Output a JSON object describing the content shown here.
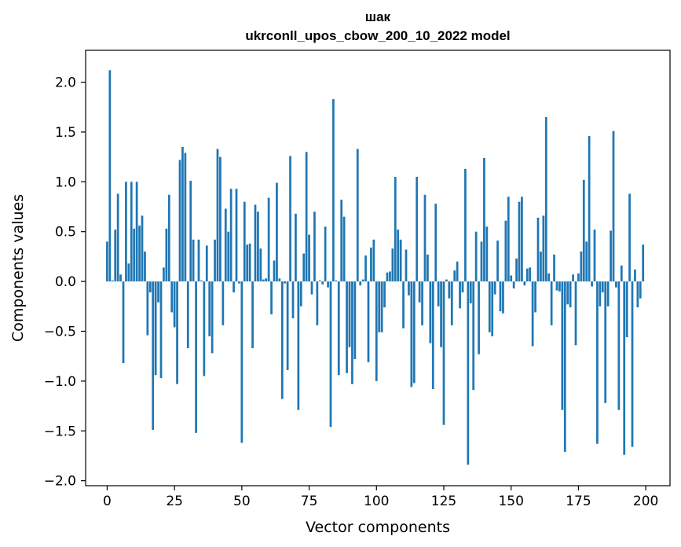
{
  "chart_data": {
    "type": "bar",
    "title": "шак",
    "subtitle": "ukrconll_upos_cbow_200_10_2022 model",
    "xlabel": "Vector components",
    "ylabel": "Components values",
    "xlim": [
      -8,
      209
    ],
    "ylim": [
      -2.05,
      2.32
    ],
    "xticks": [
      0,
      25,
      50,
      75,
      100,
      125,
      150,
      175,
      200
    ],
    "xtick_labels": [
      "0",
      "25",
      "50",
      "75",
      "100",
      "125",
      "150",
      "175",
      "200"
    ],
    "yticks": [
      2.0,
      1.5,
      1.0,
      0.5,
      0.0,
      -0.5,
      -1.0,
      -1.5,
      -2.0
    ],
    "ytick_labels": [
      "2.0",
      "1.5",
      "1.0",
      "0.5",
      "0.0",
      "−0.5",
      "−1.0",
      "−1.5",
      "−2.0"
    ],
    "bar_color": "#1f77b4",
    "grid": false,
    "x": [
      0,
      1,
      2,
      3,
      4,
      5,
      6,
      7,
      8,
      9,
      10,
      11,
      12,
      13,
      14,
      15,
      16,
      17,
      18,
      19,
      20,
      21,
      22,
      23,
      24,
      25,
      26,
      27,
      28,
      29,
      30,
      31,
      32,
      33,
      34,
      35,
      36,
      37,
      38,
      39,
      40,
      41,
      42,
      43,
      44,
      45,
      46,
      47,
      48,
      49,
      50,
      51,
      52,
      53,
      54,
      55,
      56,
      57,
      58,
      59,
      60,
      61,
      62,
      63,
      64,
      65,
      66,
      67,
      68,
      69,
      70,
      71,
      72,
      73,
      74,
      75,
      76,
      77,
      78,
      79,
      80,
      81,
      82,
      83,
      84,
      85,
      86,
      87,
      88,
      89,
      90,
      91,
      92,
      93,
      94,
      95,
      96,
      97,
      98,
      99,
      100,
      101,
      102,
      103,
      104,
      105,
      106,
      107,
      108,
      109,
      110,
      111,
      112,
      113,
      114,
      115,
      116,
      117,
      118,
      119,
      120,
      121,
      122,
      123,
      124,
      125,
      126,
      127,
      128,
      129,
      130,
      131,
      132,
      133,
      134,
      135,
      136,
      137,
      138,
      139,
      140,
      141,
      142,
      143,
      144,
      145,
      146,
      147,
      148,
      149,
      150,
      151,
      152,
      153,
      154,
      155,
      156,
      157,
      158,
      159,
      160,
      161,
      162,
      163,
      164,
      165,
      166,
      167,
      168,
      169,
      170,
      171,
      172,
      173,
      174,
      175,
      176,
      177,
      178,
      179,
      180,
      181,
      182,
      183,
      184,
      185,
      186,
      187,
      188,
      189,
      190,
      191,
      192,
      193,
      194,
      195,
      196,
      197,
      198,
      199
    ],
    "values": [
      0.4,
      2.12,
      0.01,
      0.52,
      0.88,
      0.07,
      -0.82,
      1.0,
      0.18,
      1.0,
      0.53,
      1.0,
      0.56,
      0.66,
      0.3,
      -0.54,
      -0.11,
      -1.49,
      -0.94,
      -0.21,
      -0.97,
      0.14,
      0.53,
      0.87,
      -0.31,
      -0.46,
      -1.03,
      1.22,
      1.35,
      1.29,
      -0.67,
      1.01,
      0.42,
      -1.52,
      0.42,
      0.01,
      -0.95,
      0.36,
      -0.55,
      -0.72,
      0.42,
      1.33,
      1.25,
      -0.44,
      0.73,
      0.5,
      0.93,
      -0.11,
      0.93,
      -0.02,
      -1.62,
      0.8,
      0.37,
      0.38,
      -0.67,
      0.77,
      0.7,
      0.33,
      0.02,
      0.03,
      0.84,
      -0.33,
      0.21,
      0.99,
      0.03,
      -1.18,
      -0.02,
      -0.89,
      1.26,
      -0.37,
      0.68,
      -1.29,
      -0.25,
      0.28,
      1.3,
      0.47,
      -0.13,
      0.7,
      -0.44,
      0.01,
      -0.03,
      0.55,
      -0.06,
      -1.46,
      1.83,
      0.01,
      -0.94,
      0.82,
      0.65,
      -0.92,
      -0.66,
      -1.03,
      -0.78,
      1.33,
      -0.04,
      0.02,
      0.26,
      -0.81,
      0.34,
      0.42,
      -1.0,
      -0.51,
      -0.51,
      -0.26,
      0.09,
      0.1,
      0.33,
      1.05,
      0.52,
      0.42,
      -0.47,
      0.32,
      -0.14,
      -1.06,
      -1.02,
      1.05,
      -0.21,
      -0.44,
      0.87,
      0.27,
      -0.62,
      -1.08,
      0.78,
      -0.25,
      -0.66,
      -1.44,
      0.02,
      -0.17,
      -0.44,
      0.11,
      0.2,
      -0.27,
      -0.11,
      1.13,
      -1.84,
      -0.22,
      -1.09,
      0.5,
      -0.73,
      0.4,
      1.24,
      0.55,
      -0.51,
      -0.55,
      -0.13,
      0.41,
      -0.3,
      -0.32,
      0.61,
      0.85,
      0.06,
      -0.07,
      0.23,
      0.8,
      0.85,
      -0.04,
      0.13,
      0.14,
      -0.65,
      -0.31,
      0.64,
      0.3,
      0.66,
      1.65,
      0.08,
      -0.44,
      0.27,
      -0.09,
      -0.1,
      -1.29,
      -1.71,
      -0.23,
      -0.26,
      0.07,
      -0.64,
      0.08,
      0.3,
      1.02,
      0.4,
      1.46,
      -0.05,
      0.52,
      -1.63,
      -0.25,
      -0.11,
      -1.22,
      -0.25,
      0.51,
      1.51,
      -0.06,
      -1.29,
      0.16,
      -1.74,
      -0.56,
      0.88,
      -1.66,
      0.12,
      -0.26,
      -0.17,
      0.37
    ]
  }
}
